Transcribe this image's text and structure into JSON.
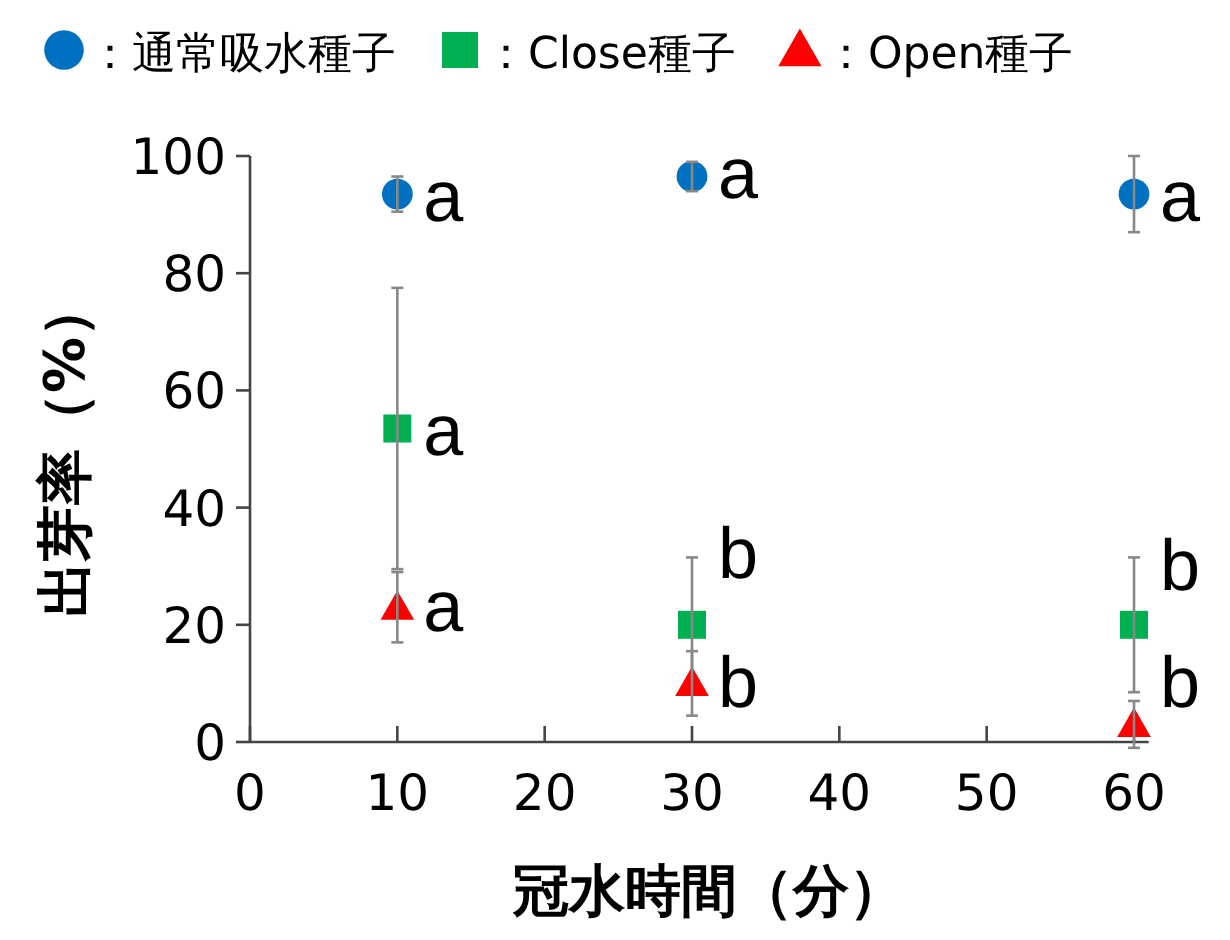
{
  "chart_data": {
    "type": "scatter",
    "xlabel": "冠水時間（分）",
    "ylabel": "出芽率（%）",
    "xlim": [
      0,
      61
    ],
    "ylim": [
      0,
      100
    ],
    "xticks": [
      0,
      10,
      20,
      30,
      40,
      50,
      60
    ],
    "yticks": [
      0,
      20,
      40,
      60,
      80,
      100
    ],
    "grid": false,
    "legend": "top",
    "series": [
      {
        "name": "：通常吸水種子",
        "color": "#0070c0",
        "marker": "circle",
        "x": [
          10,
          30,
          60
        ],
        "values": [
          93.5,
          96.5,
          93.5
        ],
        "errors": [
          3,
          2.5,
          6.5
        ]
      },
      {
        "name": "：Close種子",
        "color": "#00b050",
        "marker": "square",
        "x": [
          10,
          30,
          60
        ],
        "values": [
          53.5,
          20,
          20
        ],
        "errors": [
          24,
          11.5,
          11.5
        ]
      },
      {
        "name": "：Open種子",
        "color": "#ff0000",
        "marker": "triangle",
        "x": [
          10,
          30,
          60
        ],
        "values": [
          23,
          10,
          3
        ],
        "errors": [
          6,
          5.5,
          4
        ]
      }
    ],
    "annotations": [
      {
        "text": "a",
        "x": 10,
        "y": 93
      },
      {
        "text": "a",
        "x": 10,
        "y": 53
      },
      {
        "text": "a",
        "x": 10,
        "y": 23
      },
      {
        "text": "a",
        "x": 30,
        "y": 97
      },
      {
        "text": "b",
        "x": 30,
        "y": 32
      },
      {
        "text": "b",
        "x": 30,
        "y": 10
      },
      {
        "text": "a",
        "x": 60,
        "y": 93
      },
      {
        "text": "b",
        "x": 60,
        "y": 30
      },
      {
        "text": "b",
        "x": 60,
        "y": 10
      }
    ]
  }
}
